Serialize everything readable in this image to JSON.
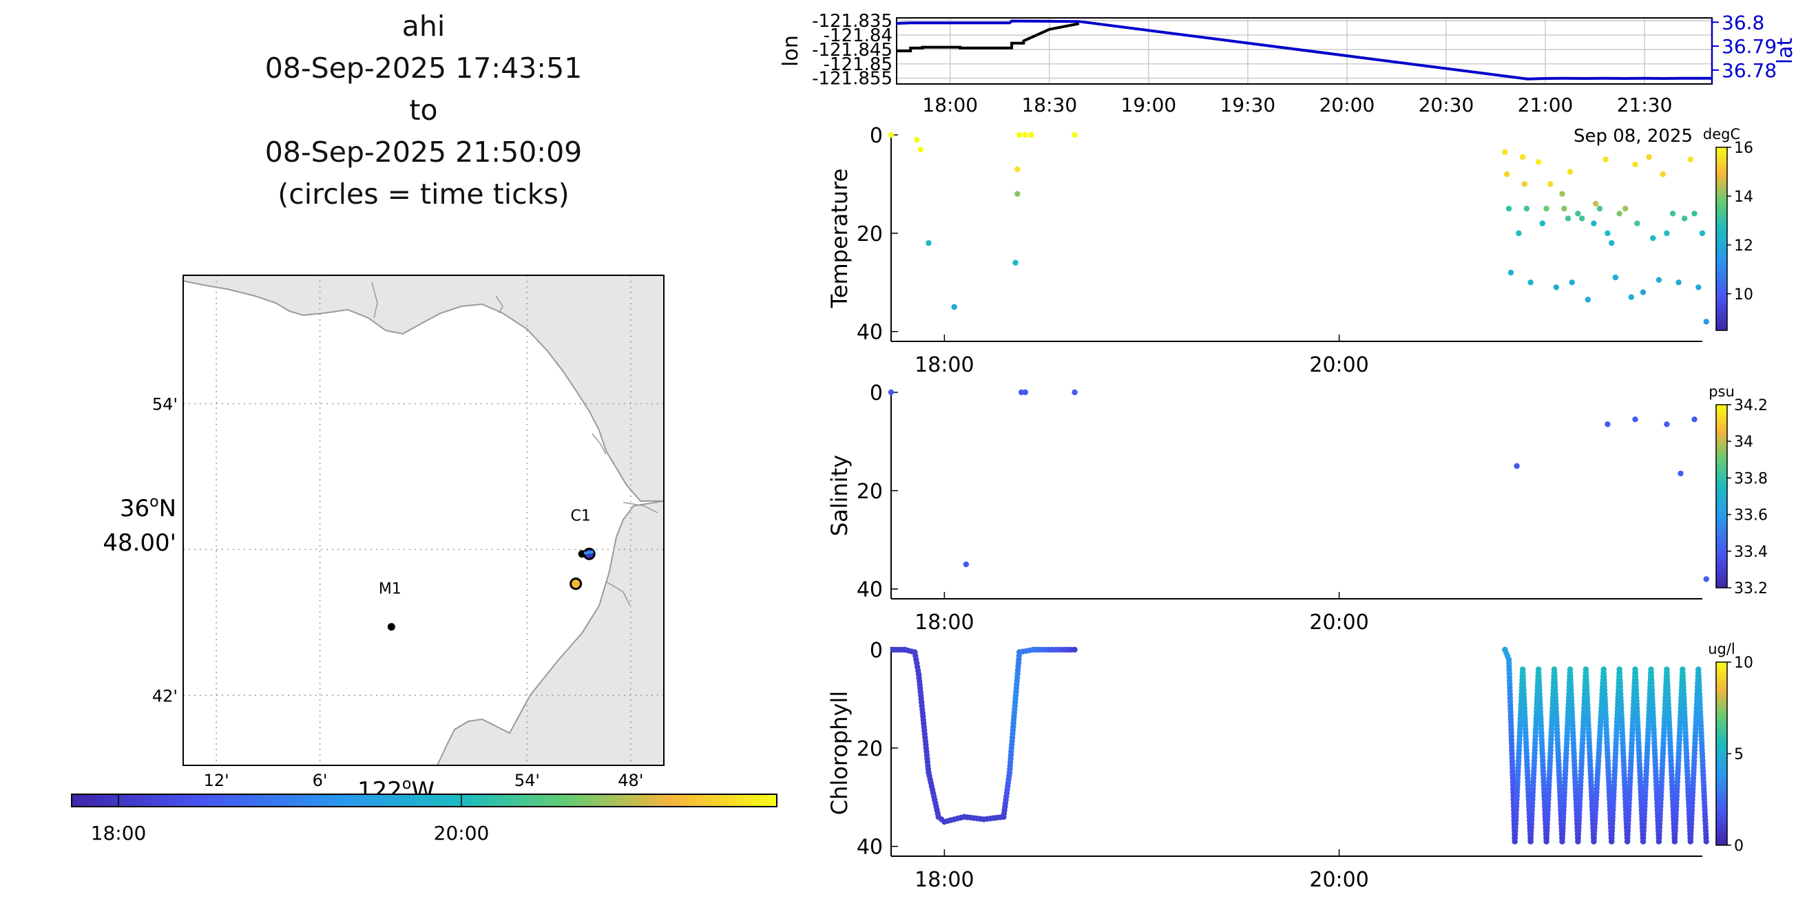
{
  "title": {
    "lines": [
      "ahi",
      "08-Sep-2025 17:43:51",
      "to",
      "08-Sep-2025 21:50:09",
      "(circles = time ticks)"
    ]
  },
  "map": {
    "stations": [
      {
        "name": "C1",
        "lon": -121.847,
        "lat": 36.797
      },
      {
        "name": "M1",
        "lon": -122.031,
        "lat": 36.747
      }
    ],
    "xticks": [
      {
        "lon": -122.2,
        "label": "12'"
      },
      {
        "lon": -122.1,
        "label": "6'"
      },
      {
        "lon": -121.9,
        "label": "54'"
      },
      {
        "lon": -121.8,
        "label": "48'"
      }
    ],
    "yticks": [
      {
        "lat": 36.9,
        "label": "54'"
      },
      {
        "lat": 36.7,
        "label": "42'"
      }
    ],
    "center_lat_label": [
      "36",
      "o",
      "N"
    ],
    "center_lat_sub": "48.00'",
    "center_lon_label": [
      "122",
      "o",
      "W"
    ],
    "time_circles": [
      {
        "lon": -121.853,
        "lat": 36.7765,
        "color": "#f4b933",
        "tick": "20:00"
      },
      {
        "lon": -121.84,
        "lat": 36.797,
        "color": "#3a37c8",
        "tick": "18:00"
      }
    ],
    "colors": {
      "land": "#e6e6e6",
      "coast": "#9a9a9a",
      "grid": "#9a9a9a"
    }
  },
  "colorbar": {
    "ticks": [
      "18:00",
      "20:00"
    ]
  },
  "nav": {
    "left_label": "lon",
    "right_label": "lat",
    "left_ticks": [
      "-121.835",
      "-121.84",
      "-121.845",
      "-121.85",
      "-121.855"
    ],
    "right_ticks": [
      "36.8",
      "36.79",
      "36.78"
    ],
    "xticks": [
      "18:00",
      "18:30",
      "19:00",
      "19:30",
      "20:00",
      "20:30",
      "21:00",
      "21:30"
    ],
    "date_label": "Sep 08, 2025",
    "lat_color": "#0000cc"
  },
  "panels": [
    {
      "ylabel": "Temperature",
      "units": "degC",
      "cbar_ticks": [
        "16",
        "14",
        "12",
        "10"
      ],
      "cmin": 8.5,
      "cmax": 16
    },
    {
      "ylabel": "Salinity",
      "units": "psu",
      "cbar_ticks": [
        "34.2",
        "34",
        "33.8",
        "33.6",
        "33.4",
        "33.2"
      ],
      "cmin": 33.2,
      "cmax": 34.2
    },
    {
      "ylabel": "Chlorophyll",
      "units": "ug/l",
      "cbar_ticks": [
        "10",
        "5",
        "0"
      ],
      "cmin": 0,
      "cmax": 10
    }
  ],
  "panel_yticks": [
    "0",
    "20",
    "40"
  ],
  "panel_xticks": [
    "18:00",
    "20:00"
  ],
  "chart_data": [
    {
      "type": "line",
      "title": "",
      "x_unit": "hours of day, 08-Sep-2025",
      "series": [
        {
          "name": "lon",
          "axis": "left",
          "color": "#000000",
          "points": [
            [
              17.73,
              -121.8455
            ],
            [
              17.8,
              -121.8455
            ],
            [
              17.8,
              -121.8445
            ],
            [
              17.86,
              -121.8445
            ],
            [
              17.86,
              -121.8442
            ],
            [
              18.05,
              -121.8442
            ],
            [
              18.05,
              -121.8445
            ],
            [
              18.31,
              -121.8445
            ],
            [
              18.31,
              -121.8428
            ],
            [
              18.37,
              -121.8428
            ],
            [
              18.37,
              -121.842
            ],
            [
              18.5,
              -121.838
            ],
            [
              18.65,
              -121.836
            ]
          ]
        },
        {
          "name": "lat",
          "axis": "right",
          "color": "#0000cc",
          "points": [
            [
              17.73,
              36.7995
            ],
            [
              17.8,
              36.7997
            ],
            [
              18.3,
              36.7997
            ],
            [
              18.31,
              36.8005
            ],
            [
              18.65,
              36.8003
            ],
            [
              20.91,
              36.7763
            ],
            [
              21.0,
              36.7765
            ],
            [
              21.1,
              36.7766
            ],
            [
              21.2,
              36.7765
            ],
            [
              21.3,
              36.7766
            ],
            [
              21.4,
              36.7765
            ],
            [
              21.5,
              36.7766
            ],
            [
              21.6,
              36.7765
            ],
            [
              21.69,
              36.7766
            ],
            [
              21.84,
              36.7766
            ]
          ]
        }
      ],
      "left_ylim": [
        -121.857,
        -121.834
      ],
      "right_ylim": [
        36.7742,
        36.8018
      ],
      "xlim": [
        17.73,
        21.84
      ]
    },
    {
      "type": "scatter",
      "title": "",
      "ylabel": "Temperature",
      "units": "degC",
      "ylim": [
        42,
        0
      ],
      "xlim": [
        17.73,
        21.84
      ],
      "points": [
        [
          17.73,
          0,
          16
        ],
        [
          17.86,
          1,
          16
        ],
        [
          17.88,
          3,
          16
        ],
        [
          17.92,
          22,
          12.6
        ],
        [
          18.05,
          35,
          11.8
        ],
        [
          18.36,
          26,
          12.6
        ],
        [
          18.37,
          12,
          14
        ],
        [
          18.37,
          7,
          15.6
        ],
        [
          18.38,
          0,
          16
        ],
        [
          18.41,
          0,
          16
        ],
        [
          18.44,
          0,
          16
        ],
        [
          18.66,
          0,
          16
        ],
        [
          20.84,
          3.5,
          15.6
        ],
        [
          20.85,
          8,
          15.4
        ],
        [
          20.86,
          15,
          13
        ],
        [
          20.87,
          28,
          12.1
        ],
        [
          20.91,
          20,
          12.7
        ],
        [
          20.93,
          4.5,
          15.6
        ],
        [
          20.94,
          10,
          15.2
        ],
        [
          20.95,
          15,
          13.2
        ],
        [
          20.97,
          30,
          12.3
        ],
        [
          21.01,
          5.5,
          15.8
        ],
        [
          21.03,
          18,
          12.6
        ],
        [
          21.05,
          15,
          13.8
        ],
        [
          21.07,
          10,
          15.5
        ],
        [
          21.1,
          31,
          12.1
        ],
        [
          21.13,
          12,
          14.2
        ],
        [
          21.14,
          15,
          14
        ],
        [
          21.16,
          17,
          13.2
        ],
        [
          21.17,
          7.5,
          15.6
        ],
        [
          21.18,
          30,
          12
        ],
        [
          21.21,
          16,
          13.2
        ],
        [
          21.23,
          17,
          13.2
        ],
        [
          21.26,
          33.5,
          12
        ],
        [
          21.29,
          18,
          12.4
        ],
        [
          21.3,
          14,
          14.5
        ],
        [
          21.32,
          15,
          13.4
        ],
        [
          21.35,
          5,
          15.6
        ],
        [
          21.36,
          20,
          12.6
        ],
        [
          21.38,
          22,
          12.3
        ],
        [
          21.4,
          29,
          12.1
        ],
        [
          21.42,
          16,
          14
        ],
        [
          21.45,
          15,
          14.2
        ],
        [
          21.48,
          33,
          12.1
        ],
        [
          21.5,
          6,
          15.6
        ],
        [
          21.51,
          18,
          13.2
        ],
        [
          21.54,
          32,
          11.8
        ],
        [
          21.57,
          4.5,
          15.4
        ],
        [
          21.59,
          21,
          12.6
        ],
        [
          21.62,
          29.5,
          12.1
        ],
        [
          21.64,
          8,
          15.4
        ],
        [
          21.66,
          20,
          12.7
        ],
        [
          21.69,
          16,
          13.2
        ],
        [
          21.72,
          30,
          12.2
        ],
        [
          21.75,
          17,
          13.2
        ],
        [
          21.78,
          5,
          15.6
        ],
        [
          21.8,
          16,
          13.1
        ],
        [
          21.82,
          31,
          12
        ],
        [
          21.84,
          20,
          12.5
        ],
        [
          21.86,
          38,
          11.5
        ]
      ]
    },
    {
      "type": "scatter",
      "title": "",
      "ylabel": "Salinity",
      "units": "psu",
      "ylim": [
        42,
        0
      ],
      "xlim": [
        17.73,
        21.84
      ],
      "points": [
        [
          17.73,
          0,
          33.4
        ],
        [
          18.11,
          35,
          33.4
        ],
        [
          18.39,
          0,
          33.4
        ],
        [
          18.41,
          0,
          33.4
        ],
        [
          18.66,
          0,
          33.4
        ],
        [
          20.9,
          15,
          33.4
        ],
        [
          21.36,
          6.5,
          33.4
        ],
        [
          21.5,
          5.5,
          33.4
        ],
        [
          21.66,
          6.5,
          33.4
        ],
        [
          21.73,
          16.5,
          33.4
        ],
        [
          21.8,
          5.5,
          33.4
        ],
        [
          21.86,
          38,
          33.4
        ]
      ]
    },
    {
      "type": "scatter",
      "title": "",
      "ylabel": "Chlorophyll",
      "units": "ug/l",
      "ylim": [
        42,
        0
      ],
      "xlim": [
        17.73,
        21.84
      ],
      "pattern": "dense profile dots; surface near 17.73–18.43 and 20.84–21.84 with repeated yo-yo casts 0.5–40 m, chlorophyll 1–6 ug/l near surface, ~1 at depth",
      "points": [
        [
          17.74,
          0,
          1
        ],
        [
          17.8,
          0,
          1
        ],
        [
          17.85,
          0.5,
          1
        ],
        [
          17.87,
          5,
          1
        ],
        [
          17.92,
          25,
          1
        ],
        [
          17.97,
          34,
          1
        ],
        [
          18.0,
          35,
          1
        ],
        [
          18.1,
          34,
          1
        ],
        [
          18.2,
          34.5,
          1
        ],
        [
          18.3,
          34,
          1
        ],
        [
          18.33,
          25,
          2.5
        ],
        [
          18.36,
          10,
          3.5
        ],
        [
          18.38,
          0.5,
          3
        ],
        [
          18.45,
          0,
          3
        ],
        [
          18.66,
          0,
          1
        ],
        [
          20.84,
          0,
          4.5
        ],
        [
          20.86,
          2,
          4
        ],
        [
          20.89,
          39,
          1
        ],
        [
          20.93,
          4,
          5.5
        ],
        [
          20.97,
          39,
          1
        ],
        [
          21.01,
          4,
          5.5
        ],
        [
          21.05,
          39,
          1
        ],
        [
          21.09,
          4,
          5.5
        ],
        [
          21.13,
          39,
          1
        ],
        [
          21.17,
          4,
          5.5
        ],
        [
          21.21,
          39,
          1
        ],
        [
          21.25,
          4,
          5.5
        ],
        [
          21.29,
          39,
          1
        ],
        [
          21.34,
          4,
          5.5
        ],
        [
          21.38,
          39,
          1
        ],
        [
          21.42,
          4,
          5.5
        ],
        [
          21.46,
          39,
          1
        ],
        [
          21.5,
          4,
          5.5
        ],
        [
          21.54,
          39,
          1
        ],
        [
          21.58,
          4,
          5.5
        ],
        [
          21.62,
          39,
          1
        ],
        [
          21.66,
          4,
          5.5
        ],
        [
          21.7,
          39,
          1
        ],
        [
          21.74,
          4,
          5.5
        ],
        [
          21.78,
          39,
          1
        ],
        [
          21.82,
          4,
          5
        ],
        [
          21.86,
          39,
          1
        ]
      ]
    }
  ]
}
